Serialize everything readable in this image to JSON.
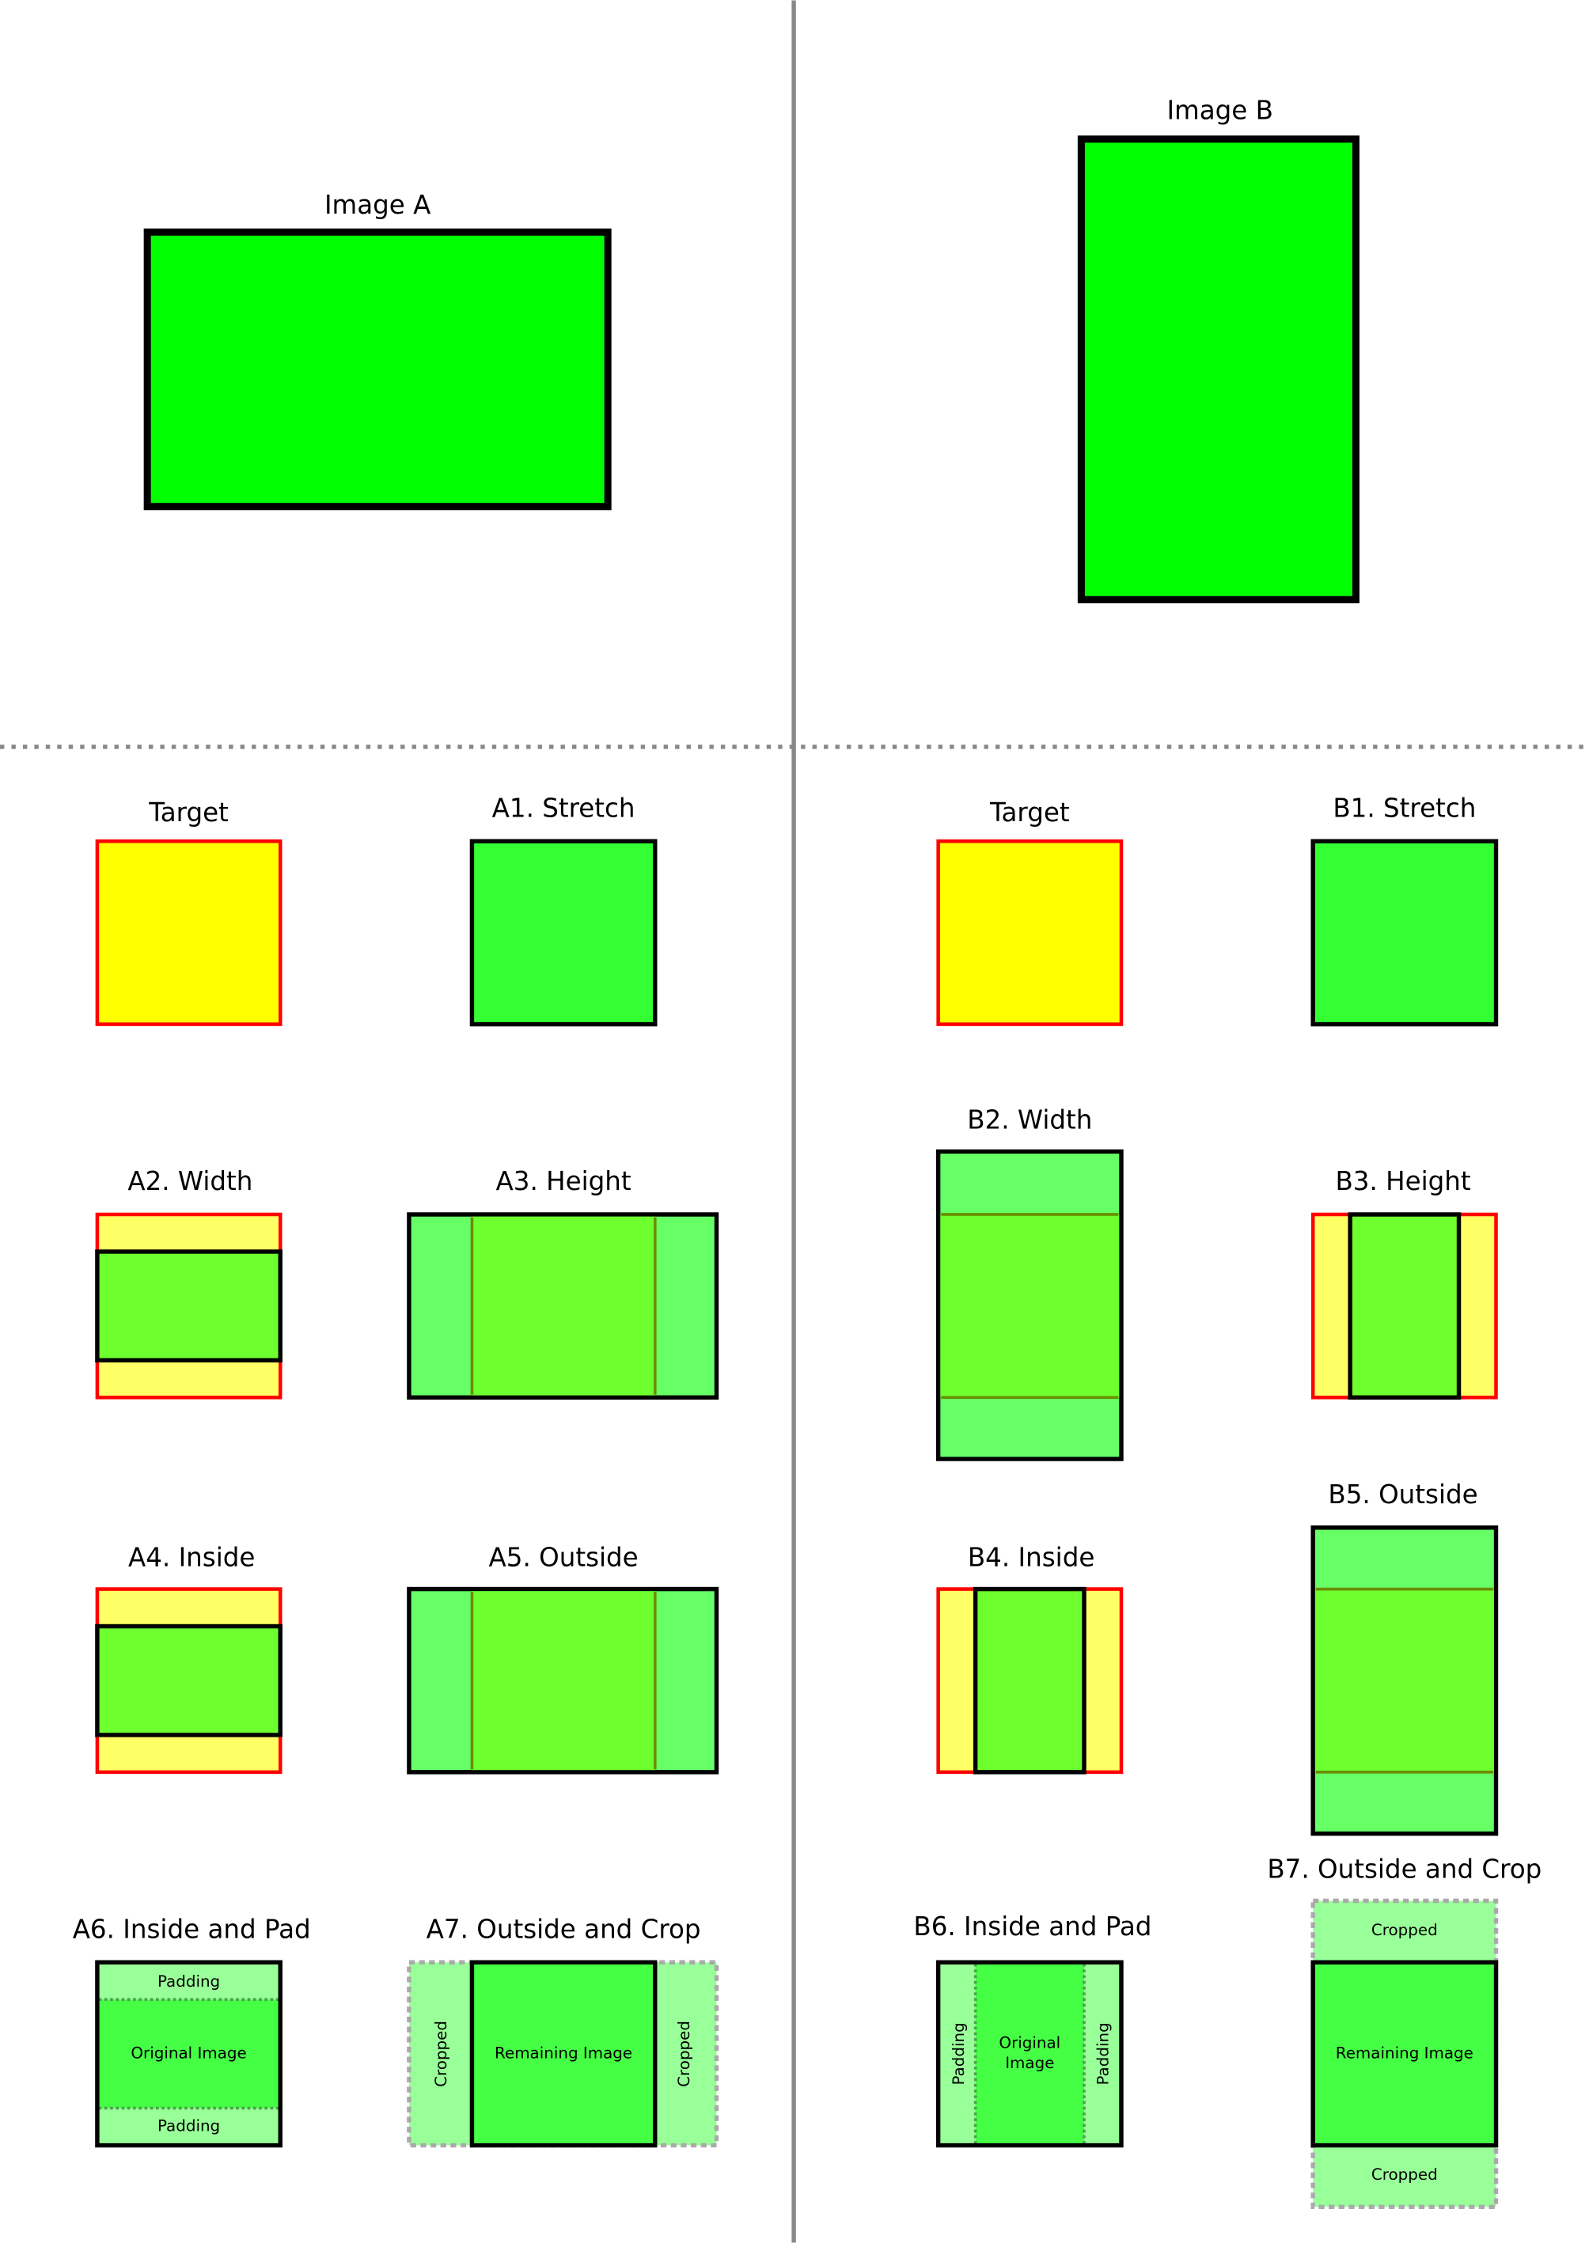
{
  "colors": {
    "image_fill": "#00ff00",
    "stretch_fill": "#33ff33",
    "target_fill": "#ffff00",
    "target_border": "#ff0000",
    "padding_yellow": "#ffff66",
    "overflow_fill": "#66ff66",
    "fit_fill": "#6dff2e",
    "pad_fill": "#99ff99",
    "kept_fill": "#44ff44",
    "divider": "#888888"
  },
  "top": {
    "image_a": "Image A",
    "image_b": "Image B"
  },
  "left": {
    "target": "Target",
    "a1": "A1. Stretch",
    "a2": "A2. Width",
    "a3": "A3. Height",
    "a4": "A4. Inside",
    "a5": "A5. Outside",
    "a6": "A6. Inside and Pad",
    "a6_padding_top": "Padding",
    "a6_original": "Original Image",
    "a6_padding_bottom": "Padding",
    "a7": "A7. Outside and Crop",
    "a7_cropped_left": "Cropped",
    "a7_remaining": "Remaining Image",
    "a7_cropped_right": "Cropped"
  },
  "right": {
    "target": "Target",
    "b1": "B1. Stretch",
    "b2": "B2. Width",
    "b3": "B3. Height",
    "b4": "B4. Inside",
    "b5": "B5. Outside",
    "b6": "B6. Inside and Pad",
    "b6_padding_left": "Padding",
    "b6_original_1": "Original",
    "b6_original_2": "Image",
    "b6_padding_right": "Padding",
    "b7": "B7. Outside and Crop",
    "b7_cropped_top": "Cropped",
    "b7_remaining": "Remaining Image",
    "b7_cropped_bottom": "Cropped"
  }
}
